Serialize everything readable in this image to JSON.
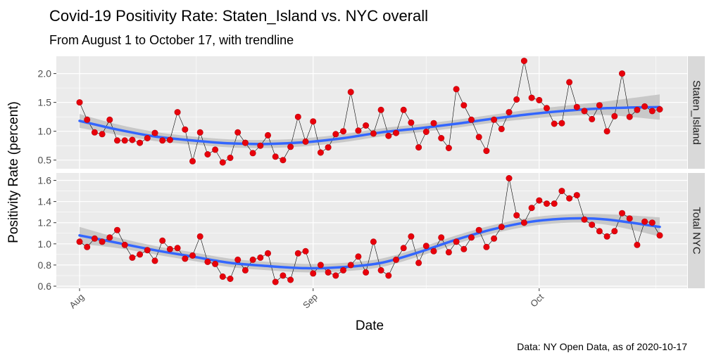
{
  "title": "Covid-19 Positivity Rate: Staten_Island  vs. NYC overall",
  "subtitle": "From August 1 to October 17, with trendline",
  "caption": "Data: NY Open Data, as of 2020-10-17",
  "colors": {
    "point": "#e8000b",
    "point_edge": "#b8000a",
    "line": "#000000",
    "trend": "#3366ff",
    "ribbon": "#c2c2c2",
    "panel_bg": "#ebebeb",
    "strip_bg": "#d9d9d9",
    "grid": "#ffffff"
  },
  "chart_data": {
    "type": "line",
    "xlabel": "Date",
    "ylabel": "Positivity Rate (percent)",
    "x_start": "2020-08-01",
    "x_end": "2020-10-17",
    "x_ticks": [
      {
        "label": "Aug",
        "date": "2020-08-01"
      },
      {
        "label": "Sep",
        "date": "2020-09-01"
      },
      {
        "label": "Oct",
        "date": "2020-10-01"
      }
    ],
    "grid": true,
    "legend": "none",
    "panels": [
      {
        "name": "Staten_Island",
        "ylim": [
          0.35,
          2.3
        ],
        "yticks": [
          0.5,
          1.0,
          1.5,
          2.0
        ],
        "ytick_labels": [
          "0.5",
          "1.0",
          "1.5",
          "2.0"
        ],
        "values": [
          1.5,
          1.2,
          0.98,
          0.95,
          1.2,
          0.84,
          0.84,
          0.85,
          0.8,
          0.88,
          0.97,
          0.84,
          0.85,
          1.33,
          1.03,
          0.48,
          0.98,
          0.6,
          0.68,
          0.46,
          0.54,
          0.98,
          0.8,
          0.62,
          0.75,
          0.93,
          0.56,
          0.5,
          0.73,
          1.25,
          0.82,
          1.17,
          0.63,
          0.72,
          0.95,
          1.0,
          1.68,
          1.01,
          1.1,
          0.96,
          1.37,
          0.92,
          0.97,
          1.37,
          1.15,
          0.72,
          0.99,
          1.14,
          0.88,
          0.71,
          1.73,
          1.45,
          1.2,
          0.9,
          0.66,
          1.2,
          1.04,
          1.33,
          1.55,
          2.22,
          1.58,
          1.54,
          1.4,
          1.13,
          1.14,
          1.85,
          1.42,
          1.35,
          1.21,
          1.45,
          1.0,
          1.26,
          2.0,
          1.25,
          1.37,
          1.43,
          1.35,
          1.38
        ],
        "trend": [
          [
            "2020-08-01",
            1.18
          ],
          [
            "2020-08-06",
            1.03
          ],
          [
            "2020-08-11",
            0.91
          ],
          [
            "2020-08-16",
            0.84
          ],
          [
            "2020-08-21",
            0.79
          ],
          [
            "2020-08-26",
            0.78
          ],
          [
            "2020-08-31",
            0.81
          ],
          [
            "2020-09-05",
            0.88
          ],
          [
            "2020-09-10",
            0.98
          ],
          [
            "2020-09-15",
            1.05
          ],
          [
            "2020-09-20",
            1.13
          ],
          [
            "2020-09-25",
            1.22
          ],
          [
            "2020-09-30",
            1.3
          ],
          [
            "2020-10-05",
            1.36
          ],
          [
            "2020-10-10",
            1.4
          ],
          [
            "2020-10-17",
            1.42
          ]
        ],
        "trend_se": [
          0.12,
          0.09,
          0.08,
          0.07,
          0.07,
          0.07,
          0.07,
          0.07,
          0.07,
          0.07,
          0.07,
          0.07,
          0.08,
          0.09,
          0.12,
          0.22
        ]
      },
      {
        "name": "Total NYC",
        "ylim": [
          0.58,
          1.67
        ],
        "yticks": [
          0.6,
          0.8,
          1.0,
          1.2,
          1.4,
          1.6
        ],
        "ytick_labels": [
          "0.6",
          "0.8",
          "1.0",
          "1.2",
          "1.4",
          "1.6"
        ],
        "values": [
          1.02,
          0.97,
          1.05,
          1.02,
          1.06,
          1.13,
          0.99,
          0.87,
          0.9,
          0.94,
          0.84,
          1.03,
          0.95,
          0.96,
          0.86,
          0.89,
          1.07,
          0.83,
          0.81,
          0.69,
          0.67,
          0.85,
          0.75,
          0.85,
          0.87,
          0.91,
          0.64,
          0.7,
          0.66,
          0.91,
          0.93,
          0.72,
          0.8,
          0.73,
          0.7,
          0.75,
          0.8,
          0.88,
          0.73,
          1.02,
          0.75,
          0.7,
          0.85,
          0.96,
          1.07,
          0.82,
          0.98,
          0.93,
          1.06,
          0.92,
          1.02,
          0.95,
          1.06,
          1.13,
          0.97,
          1.05,
          1.16,
          1.62,
          1.27,
          1.2,
          1.34,
          1.41,
          1.38,
          1.38,
          1.5,
          1.43,
          1.46,
          1.23,
          1.18,
          1.12,
          1.07,
          1.12,
          1.29,
          1.24,
          0.99,
          1.21,
          1.2,
          1.08
        ],
        "trend": [
          [
            "2020-08-01",
            1.08
          ],
          [
            "2020-08-06",
            1.01
          ],
          [
            "2020-08-11",
            0.94
          ],
          [
            "2020-08-16",
            0.88
          ],
          [
            "2020-08-21",
            0.82
          ],
          [
            "2020-08-26",
            0.79
          ],
          [
            "2020-08-31",
            0.77
          ],
          [
            "2020-09-05",
            0.78
          ],
          [
            "2020-09-10",
            0.82
          ],
          [
            "2020-09-15",
            0.92
          ],
          [
            "2020-09-20",
            1.04
          ],
          [
            "2020-09-25",
            1.14
          ],
          [
            "2020-09-30",
            1.21
          ],
          [
            "2020-10-05",
            1.24
          ],
          [
            "2020-10-10",
            1.23
          ],
          [
            "2020-10-17",
            1.16
          ]
        ],
        "trend_se": [
          0.08,
          0.05,
          0.04,
          0.04,
          0.04,
          0.04,
          0.04,
          0.04,
          0.04,
          0.04,
          0.04,
          0.04,
          0.04,
          0.04,
          0.05,
          0.09
        ]
      }
    ]
  }
}
